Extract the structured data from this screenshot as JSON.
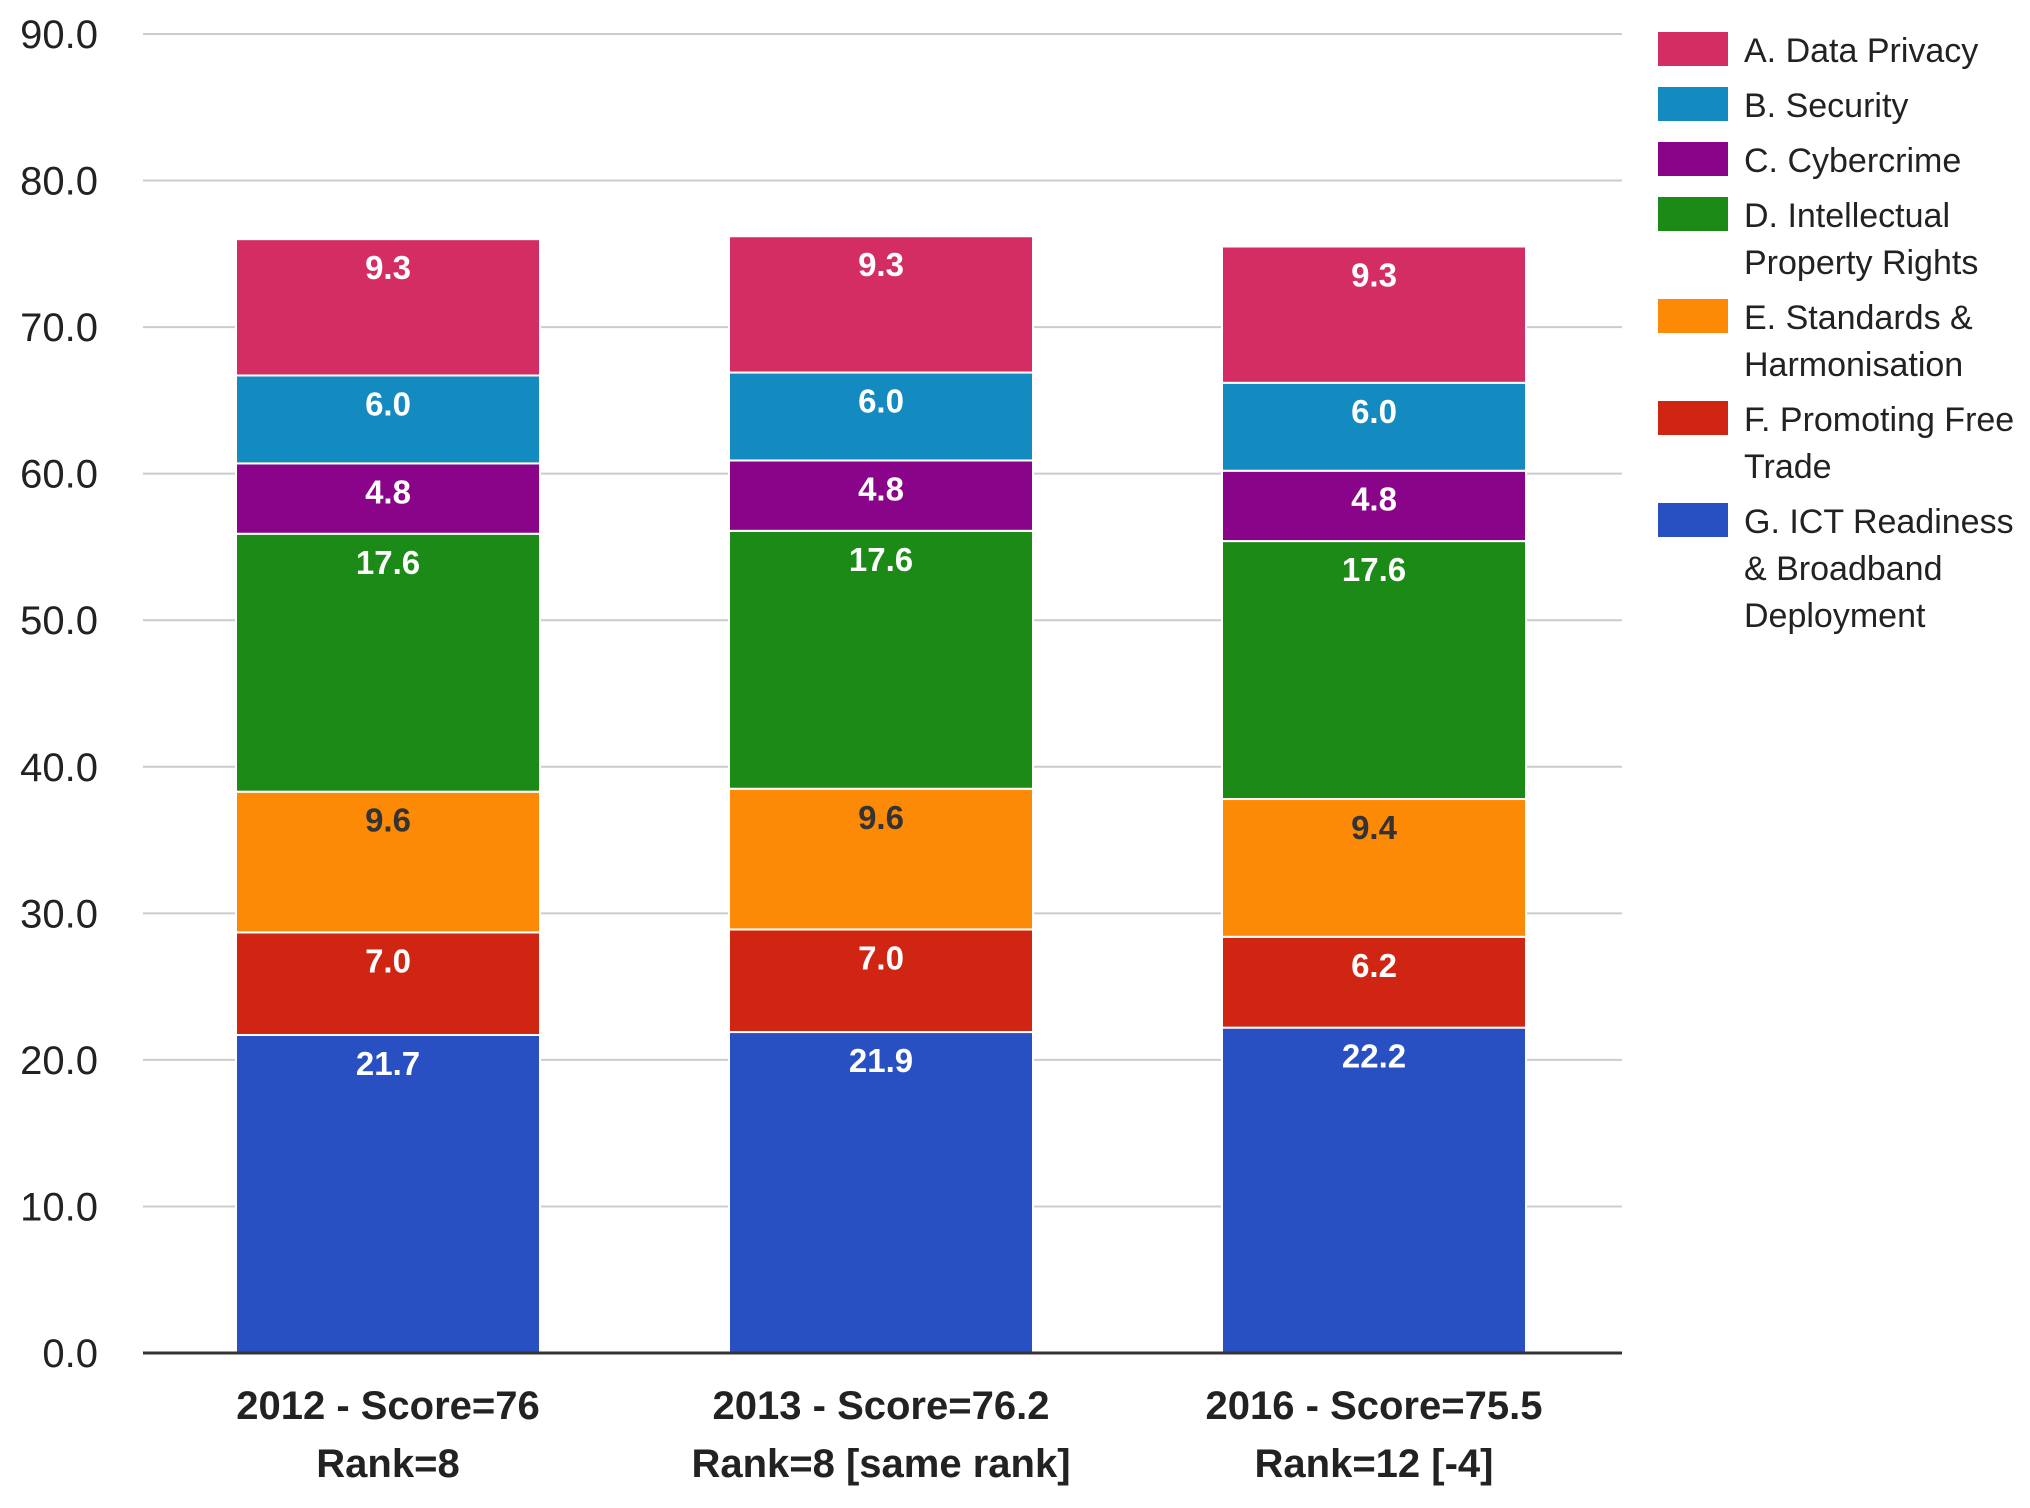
{
  "chart_data": {
    "type": "bar",
    "stacked": true,
    "title": "",
    "xlabel": "",
    "ylabel": "",
    "ylim": [
      0,
      90
    ],
    "yticks": [
      0,
      10,
      20,
      30,
      40,
      50,
      60,
      70,
      80,
      90
    ],
    "ytick_format_decimals": 1,
    "grid": true,
    "legend_position": "right",
    "categories": [
      [
        "2012 - Score=76",
        "Rank=8"
      ],
      [
        "2013 - Score=76.2",
        "Rank=8 [same rank]"
      ],
      [
        "2016 - Score=75.5",
        "Rank=12 [-4]"
      ]
    ],
    "series": [
      {
        "name": "G. ICT Readiness & Broadband Deployment",
        "legend_lines": [
          "G. ICT Readiness",
          "& Broadband",
          "Deployment"
        ],
        "color": "#2850C3",
        "label_color": "#ffffff",
        "values": [
          21.7,
          21.9,
          22.2
        ]
      },
      {
        "name": "F. Promoting Free Trade",
        "legend_lines": [
          "F. Promoting Free",
          "Trade"
        ],
        "color": "#D12514",
        "label_color": "#ffffff",
        "values": [
          7.0,
          7.0,
          6.2
        ]
      },
      {
        "name": "E. Standards & Harmonisation",
        "legend_lines": [
          "E. Standards &",
          "Harmonisation"
        ],
        "color": "#FC8A07",
        "label_color": "#333333",
        "values": [
          9.6,
          9.6,
          9.4
        ]
      },
      {
        "name": "D. Intellectual Property Rights",
        "legend_lines": [
          "D. Intellectual",
          "Property Rights"
        ],
        "color": "#1C8A17",
        "label_color": "#ffffff",
        "values": [
          17.6,
          17.6,
          17.6
        ]
      },
      {
        "name": "C. Cybercrime",
        "legend_lines": [
          "C. Cybercrime"
        ],
        "color": "#890489",
        "label_color": "#ffffff",
        "values": [
          4.8,
          4.8,
          4.8
        ]
      },
      {
        "name": "B. Security",
        "legend_lines": [
          "B. Security"
        ],
        "color": "#138BC0",
        "label_color": "#ffffff",
        "values": [
          6.0,
          6.0,
          6.0
        ]
      },
      {
        "name": "A. Data Privacy",
        "legend_lines": [
          "A. Data Privacy"
        ],
        "color": "#D42D63",
        "label_color": "#ffffff",
        "values": [
          9.3,
          9.3,
          9.3
        ]
      }
    ],
    "legend_order": [
      6,
      5,
      4,
      3,
      2,
      1,
      0
    ],
    "colors": {
      "grid": "#cccccc",
      "axis": "#333333",
      "segment_border": "#ffffff"
    }
  }
}
